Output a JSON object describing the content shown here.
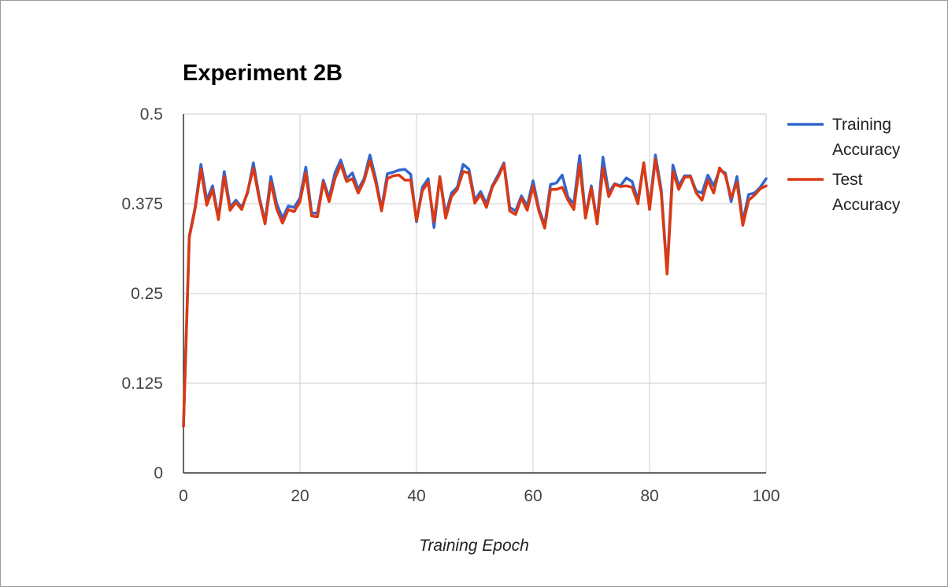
{
  "chart_data": {
    "type": "line",
    "title": "Experiment 2B",
    "xlabel": "Training Epoch",
    "ylabel": "",
    "xlim": [
      0,
      100
    ],
    "ylim": [
      0,
      0.5
    ],
    "x_ticks": [
      "0",
      "20",
      "40",
      "60",
      "80",
      "100"
    ],
    "y_ticks": [
      "0",
      "0.125",
      "0.25",
      "0.375",
      "0.5"
    ],
    "grid": true,
    "legend_position": "right",
    "series": [
      {
        "name": "Training Accuracy",
        "legend_lines": [
          "Training",
          "Accuracy"
        ],
        "color": "#3366cc",
        "values": [
          0.065,
          0.33,
          0.37,
          0.43,
          0.38,
          0.4,
          0.355,
          0.42,
          0.37,
          0.38,
          0.37,
          0.39,
          0.432,
          0.385,
          0.35,
          0.413,
          0.375,
          0.355,
          0.372,
          0.37,
          0.383,
          0.426,
          0.362,
          0.362,
          0.408,
          0.383,
          0.418,
          0.436,
          0.41,
          0.418,
          0.395,
          0.41,
          0.443,
          0.41,
          0.368,
          0.417,
          0.419,
          0.422,
          0.423,
          0.416,
          0.35,
          0.398,
          0.41,
          0.342,
          0.413,
          0.36,
          0.39,
          0.398,
          0.43,
          0.423,
          0.38,
          0.392,
          0.375,
          0.4,
          0.415,
          0.432,
          0.37,
          0.365,
          0.386,
          0.372,
          0.407,
          0.368,
          0.345,
          0.402,
          0.404,
          0.415,
          0.384,
          0.375,
          0.442,
          0.358,
          0.4,
          0.35,
          0.44,
          0.39,
          0.403,
          0.4,
          0.411,
          0.406,
          0.38,
          0.432,
          0.37,
          0.443,
          0.395,
          0.28,
          0.429,
          0.4,
          0.414,
          0.414,
          0.393,
          0.39,
          0.415,
          0.4,
          0.422,
          0.418,
          0.378,
          0.413,
          0.35,
          0.388,
          0.39,
          0.398,
          0.41
        ]
      },
      {
        "name": "Test Accuracy",
        "legend_lines": [
          "Test",
          "Accuracy"
        ],
        "color": "#dc3912",
        "values": [
          0.065,
          0.328,
          0.368,
          0.423,
          0.373,
          0.395,
          0.353,
          0.413,
          0.366,
          0.377,
          0.367,
          0.392,
          0.425,
          0.382,
          0.347,
          0.405,
          0.368,
          0.348,
          0.367,
          0.364,
          0.378,
          0.418,
          0.358,
          0.357,
          0.405,
          0.378,
          0.41,
          0.43,
          0.406,
          0.41,
          0.39,
          0.407,
          0.435,
          0.405,
          0.365,
          0.41,
          0.414,
          0.415,
          0.408,
          0.408,
          0.352,
          0.393,
          0.405,
          0.35,
          0.412,
          0.355,
          0.385,
          0.395,
          0.42,
          0.418,
          0.376,
          0.388,
          0.37,
          0.398,
          0.412,
          0.43,
          0.365,
          0.36,
          0.383,
          0.366,
          0.4,
          0.365,
          0.341,
          0.395,
          0.395,
          0.398,
          0.38,
          0.367,
          0.43,
          0.355,
          0.397,
          0.347,
          0.425,
          0.385,
          0.402,
          0.399,
          0.4,
          0.398,
          0.375,
          0.432,
          0.367,
          0.437,
          0.39,
          0.277,
          0.42,
          0.395,
          0.412,
          0.413,
          0.39,
          0.38,
          0.408,
          0.39,
          0.425,
          0.415,
          0.383,
          0.405,
          0.345,
          0.38,
          0.387,
          0.396,
          0.4
        ]
      }
    ]
  }
}
